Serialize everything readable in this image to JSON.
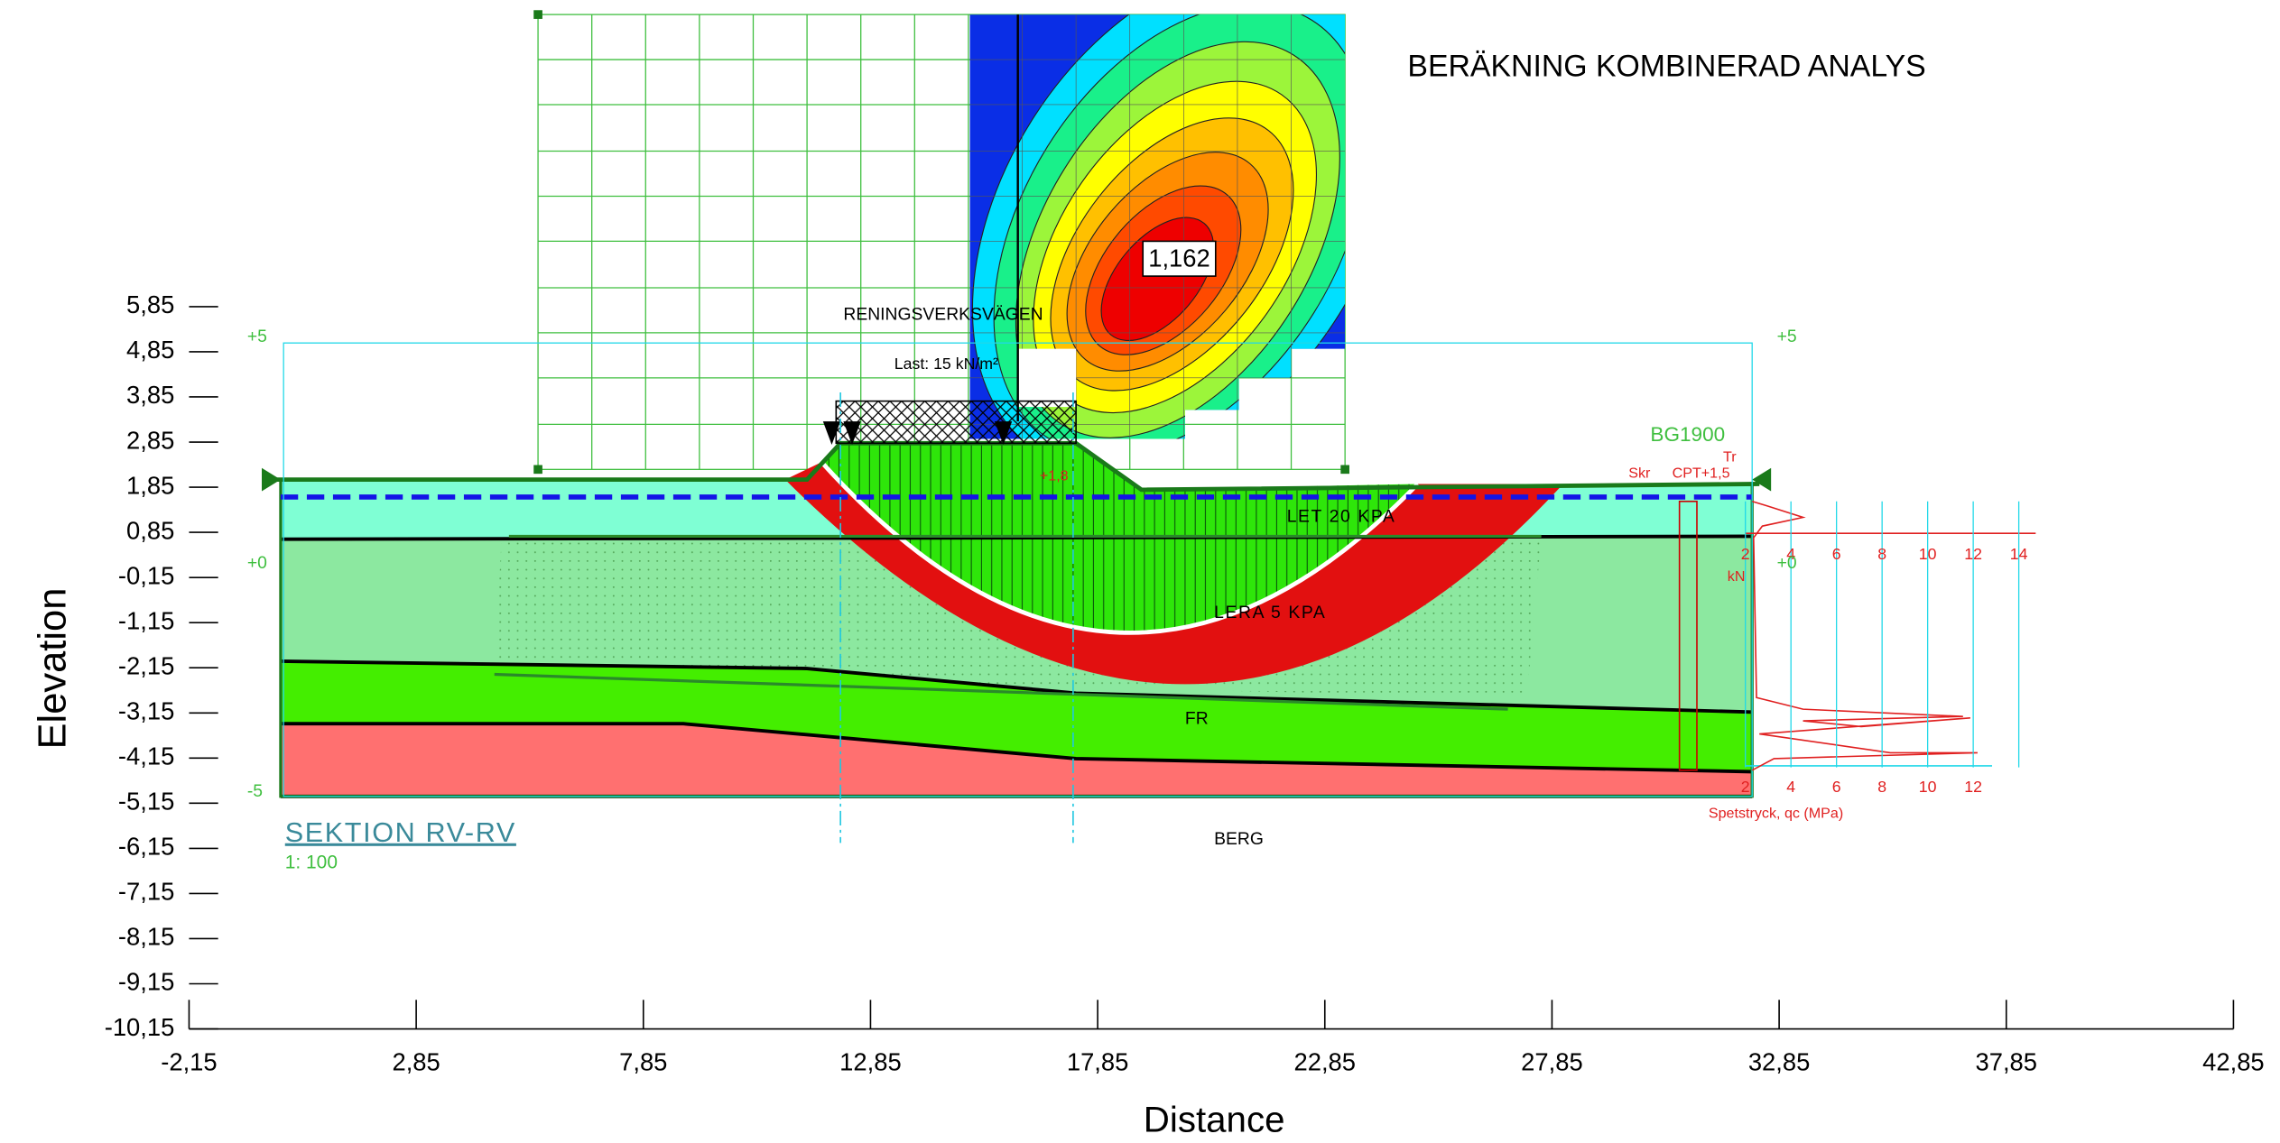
{
  "chart_data": {
    "type": "section",
    "title": "BERÄKNING KOMBINERAD ANALYS",
    "x_label": "Distance",
    "y_label": "Elevation",
    "xlim": [
      -2.15,
      42.85
    ],
    "ylim": [
      -10.15,
      5.85
    ],
    "xticks": [
      {
        "value": -2.15,
        "label": "-2,15"
      },
      {
        "value": 2.85,
        "label": "2,85"
      },
      {
        "value": 7.85,
        "label": "7,85"
      },
      {
        "value": 12.85,
        "label": "12,85"
      },
      {
        "value": 17.85,
        "label": "17,85"
      },
      {
        "value": 22.85,
        "label": "22,85"
      },
      {
        "value": 27.85,
        "label": "27,85"
      },
      {
        "value": 32.85,
        "label": "32,85"
      },
      {
        "value": 37.85,
        "label": "37,85"
      },
      {
        "value": 42.85,
        "label": "42,85"
      }
    ],
    "yticks": [
      {
        "value": 5.85,
        "label": "5,85"
      },
      {
        "value": 4.85,
        "label": "4,85"
      },
      {
        "value": 3.85,
        "label": "3,85"
      },
      {
        "value": 2.85,
        "label": "2,85"
      },
      {
        "value": 1.85,
        "label": "1,85"
      },
      {
        "value": 0.85,
        "label": "0,85"
      },
      {
        "value": -0.15,
        "label": "-0,15"
      },
      {
        "value": -1.15,
        "label": "-1,15"
      },
      {
        "value": -2.15,
        "label": "-2,15"
      },
      {
        "value": -3.15,
        "label": "-3,15"
      },
      {
        "value": -4.15,
        "label": "-4,15"
      },
      {
        "value": -5.15,
        "label": "-5,15"
      },
      {
        "value": -6.15,
        "label": "-6,15"
      },
      {
        "value": -7.15,
        "label": "-7,15"
      },
      {
        "value": -8.15,
        "label": "-8,15"
      },
      {
        "value": -9.15,
        "label": "-9,15"
      },
      {
        "value": -10.15,
        "label": "-10,15"
      }
    ],
    "factor_of_safety": {
      "value": 1.162,
      "label": "1,162"
    },
    "annotations": {
      "road": "RENINGSVERKSVÄGEN",
      "load": "Last: 15 kN/m²",
      "layer_top": "LET 20 KPA",
      "layer_clay": "LERA 5 KPA",
      "layer_fr": "FR",
      "layer_rock": "BERG",
      "section": "SEKTION RV-RV",
      "scale": "1: 100",
      "level_p5_left": "+5",
      "level_0_left": "+0",
      "level_m5_left": "-5",
      "level_p5_right": "+5",
      "level_0_right": "+0",
      "borehole": "BG1900",
      "tr": "Tr",
      "skr": "Skr",
      "cpt": "CPT+1,5",
      "kn": "kN",
      "fill_level": "+1,8"
    },
    "cpt": {
      "top_ticks": [
        2,
        4,
        6,
        8,
        10,
        12,
        14
      ],
      "bottom_ticks": [
        2,
        4,
        6,
        8,
        10,
        12
      ],
      "axis_label": "Spetstryck, qc (MPa)"
    }
  }
}
